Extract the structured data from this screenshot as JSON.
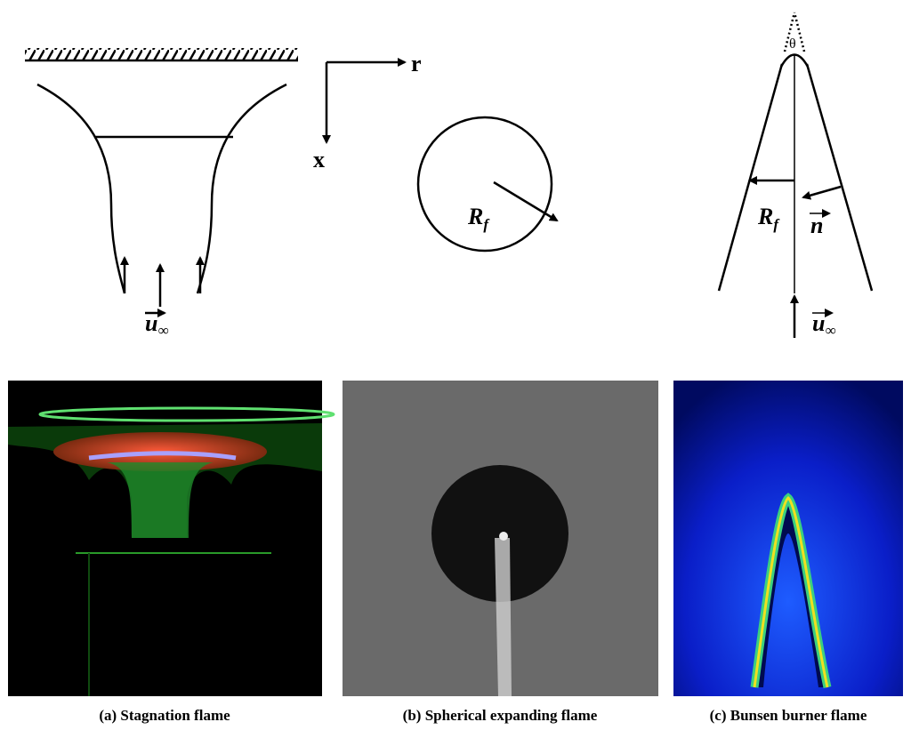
{
  "panels": [
    {
      "caption": "(a) Stagnation flame",
      "velocity": {
        "main": "u",
        "sub": "∞"
      }
    },
    {
      "caption": "(b) Spherical expanding flame",
      "radius": {
        "main": "R",
        "sub": "f"
      }
    },
    {
      "caption": "(c) Bunsen burner flame",
      "radius": {
        "main": "R",
        "sub": "f"
      },
      "normal": "n",
      "angle": "θ",
      "velocity": {
        "main": "u",
        "sub": "∞"
      }
    }
  ],
  "axes": {
    "r": "r",
    "x": "x"
  }
}
